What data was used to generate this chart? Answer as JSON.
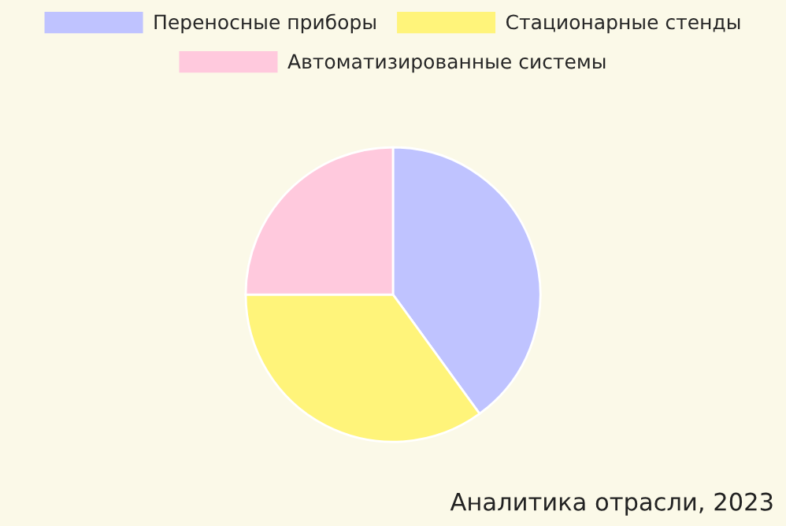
{
  "chart_data": {
    "type": "pie",
    "categories": [
      "Переносные приборы",
      "Стационарные стенды",
      "Автоматизированные системы"
    ],
    "values": [
      40,
      35,
      25
    ],
    "colors": [
      "#bfc3ff",
      "#fff47a",
      "#ffc9dd"
    ],
    "legend": "top",
    "annotations": [
      "Аналитика отрасли, 2023"
    ]
  }
}
